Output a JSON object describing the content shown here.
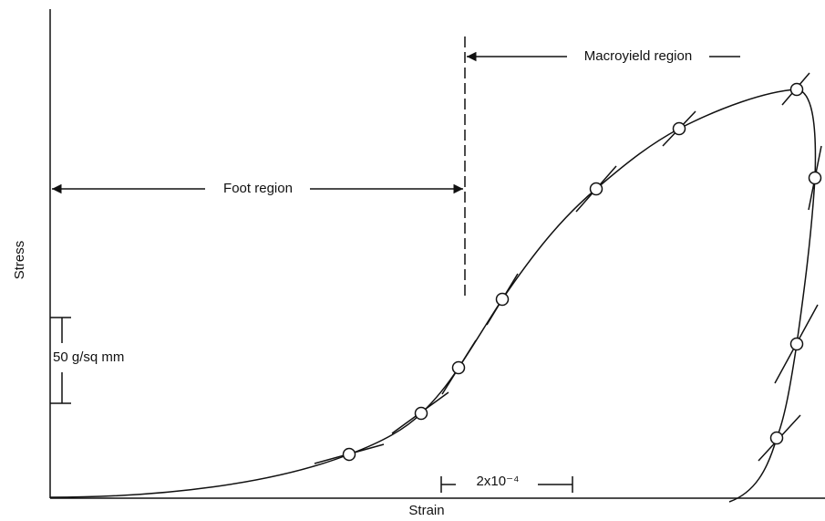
{
  "axes": {
    "y_label": "Stress",
    "x_label": "Strain"
  },
  "regions": {
    "foot": "Foot region",
    "macroyield": "Macroyield region"
  },
  "scales": {
    "stress": "50 g/sq mm",
    "strain": "2x10⁻⁴"
  }
}
